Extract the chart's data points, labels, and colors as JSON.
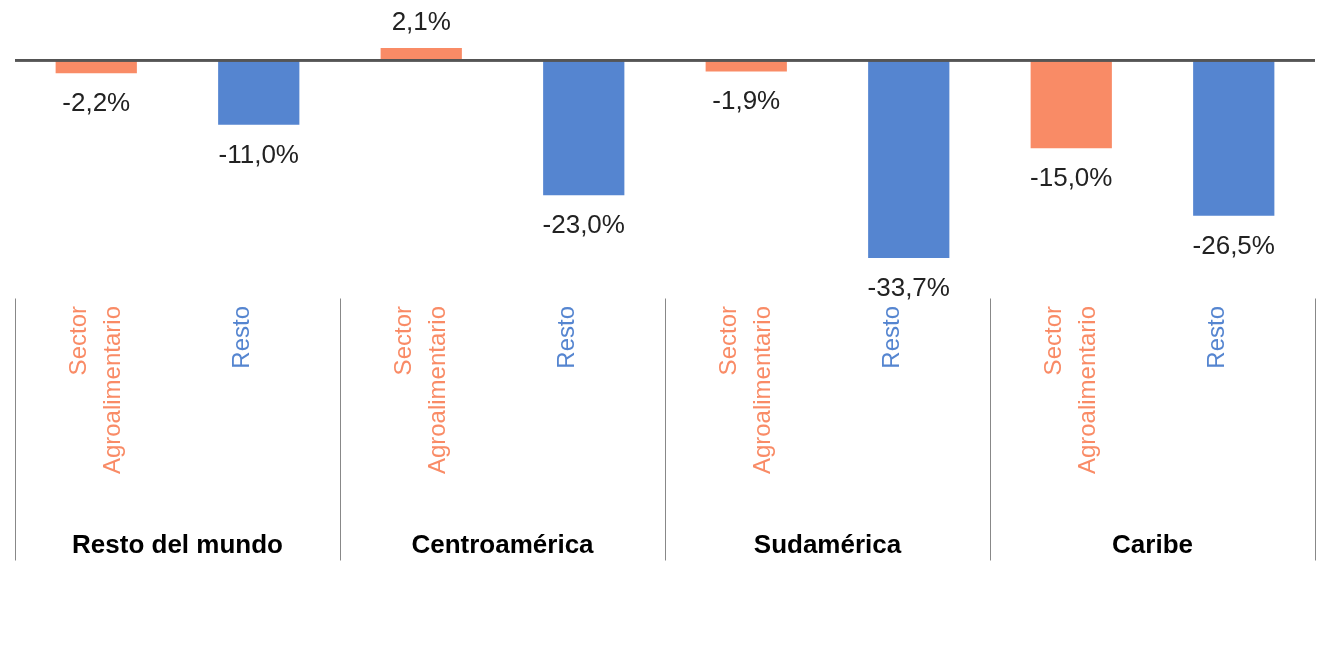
{
  "chart_data": {
    "type": "bar",
    "categories": [
      "Resto del mundo",
      "Centroamérica",
      "Sudamérica",
      "Caribe"
    ],
    "series": [
      {
        "name": "Sector Agroalimentario",
        "color": "#f98b66",
        "values": [
          -2.2,
          2.1,
          -1.9,
          -15.0
        ],
        "value_labels": [
          "-2,2%",
          "2,1%",
          "-1,9%",
          "-15,0%"
        ]
      },
      {
        "name": "Resto",
        "color": "#5585d0",
        "values": [
          -11.0,
          -23.0,
          -33.7,
          -26.5
        ],
        "value_labels": [
          "-11,0%",
          "-23,0%",
          "-33,7%",
          "-26,5%"
        ]
      }
    ],
    "legend": false
  }
}
